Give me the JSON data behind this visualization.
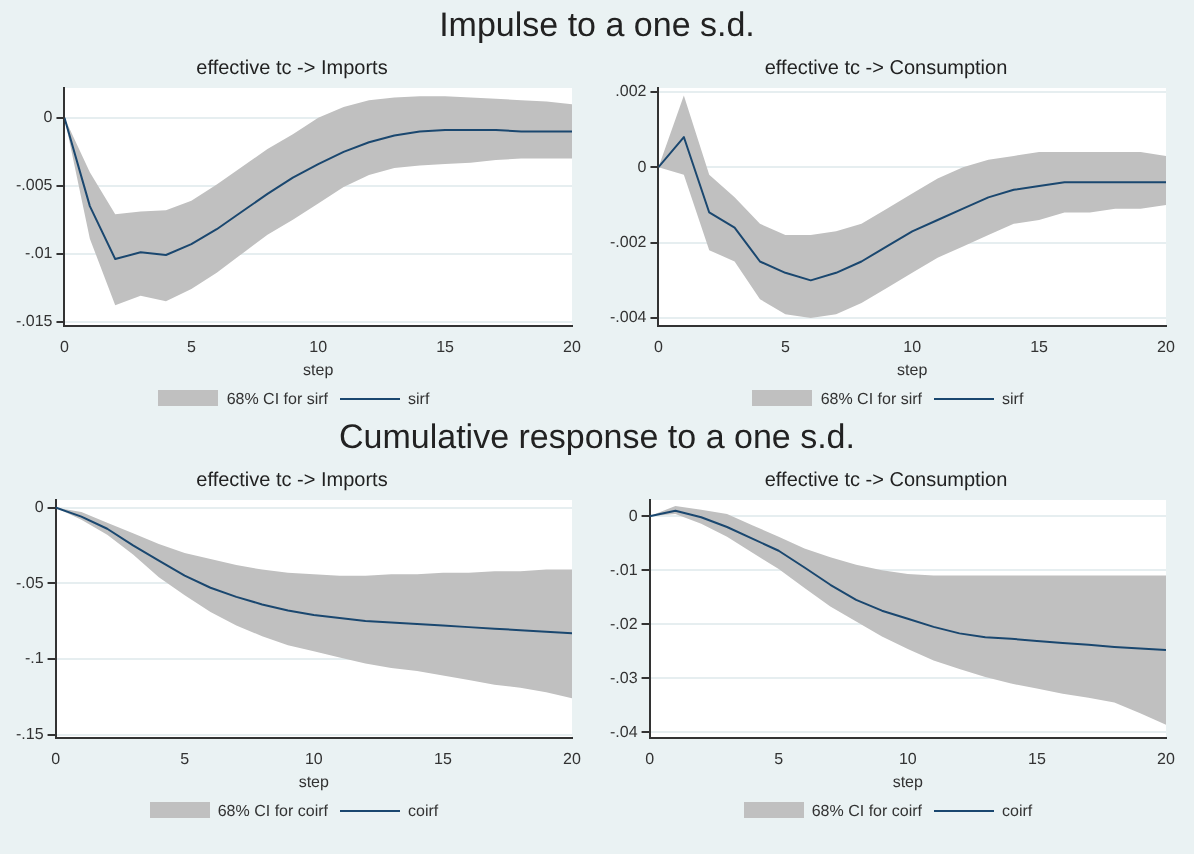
{
  "chart_data": [
    {
      "type": "line",
      "title": "effective tc -> Imports",
      "annotations": [
        "Impulse to a one s.d.",
        "68% CI for sirf"
      ],
      "xlabel": "step",
      "x": [
        0,
        1,
        2,
        3,
        4,
        5,
        6,
        7,
        8,
        9,
        10,
        11,
        12,
        13,
        14,
        15,
        16,
        17,
        18,
        19,
        20
      ],
      "xlim": [
        0,
        20
      ],
      "xticks": [
        0,
        5,
        10,
        15,
        20
      ],
      "ylim": [
        -0.0153,
        0.0022
      ],
      "yticks": [
        {
          "value": -0.015,
          "label": "-.015"
        },
        {
          "value": -0.01,
          "label": "-.01"
        },
        {
          "value": -0.005,
          "label": "-.005"
        },
        {
          "value": 0,
          "label": "0"
        }
      ],
      "grid": "y",
      "legend": "bottom",
      "marker": "none",
      "series": [
        {
          "name": "sirf",
          "color": "#1a476f",
          "values": [
            0,
            -0.0065,
            -0.0104,
            -0.0099,
            -0.0101,
            -0.0093,
            -0.0082,
            -0.0069,
            -0.0056,
            -0.0044,
            -0.0034,
            -0.0025,
            -0.0018,
            -0.0013,
            -0.001,
            -0.0009,
            -0.0009,
            -0.0009,
            -0.001,
            -0.001,
            -0.001
          ],
          "lower": [
            0,
            -0.0089,
            -0.0138,
            -0.0131,
            -0.0135,
            -0.0126,
            -0.0114,
            -0.01,
            -0.0086,
            -0.0075,
            -0.0063,
            -0.0051,
            -0.0042,
            -0.0037,
            -0.0035,
            -0.0034,
            -0.0033,
            -0.0031,
            -0.003,
            -0.003,
            -0.003
          ],
          "upper": [
            0,
            -0.004,
            -0.0071,
            -0.0069,
            -0.0068,
            -0.0061,
            -0.0049,
            -0.0036,
            -0.0023,
            -0.0012,
            0,
            0.0008,
            0.0013,
            0.0015,
            0.0016,
            0.0016,
            0.0015,
            0.0014,
            0.0013,
            0.0012,
            0.001
          ]
        }
      ]
    },
    {
      "type": "line",
      "title": "effective tc -> Consumption",
      "annotations": [
        "68% CI for sirf"
      ],
      "xlabel": "step",
      "x": [
        0,
        1,
        2,
        3,
        4,
        5,
        6,
        7,
        8,
        9,
        10,
        11,
        12,
        13,
        14,
        15,
        16,
        17,
        18,
        19,
        20
      ],
      "xlim": [
        0,
        20
      ],
      "xticks": [
        0,
        5,
        10,
        15,
        20
      ],
      "ylim": [
        -0.0042,
        0.0021
      ],
      "yticks": [
        {
          "value": -0.004,
          "label": "-.004"
        },
        {
          "value": -0.002,
          "label": "-.002"
        },
        {
          "value": 0,
          "label": "0"
        },
        {
          "value": 0.002,
          "label": ".002"
        }
      ],
      "grid": "y",
      "legend": "bottom",
      "marker": "none",
      "series": [
        {
          "name": "sirf",
          "color": "#1a476f",
          "values": [
            0,
            0.0008,
            -0.0012,
            -0.0016,
            -0.0025,
            -0.0028,
            -0.003,
            -0.0028,
            -0.0025,
            -0.0021,
            -0.0017,
            -0.0014,
            -0.0011,
            -0.0008,
            -0.0006,
            -0.0005,
            -0.0004,
            -0.0004,
            -0.0004,
            -0.0004,
            -0.0004
          ],
          "lower": [
            0,
            -0.0002,
            -0.0022,
            -0.0025,
            -0.0035,
            -0.0039,
            -0.004,
            -0.0039,
            -0.0036,
            -0.0032,
            -0.0028,
            -0.0024,
            -0.0021,
            -0.0018,
            -0.0015,
            -0.0014,
            -0.0012,
            -0.0012,
            -0.0011,
            -0.0011,
            -0.001
          ],
          "upper": [
            0,
            0.0019,
            -0.0002,
            -0.0008,
            -0.0015,
            -0.0018,
            -0.0018,
            -0.0017,
            -0.0015,
            -0.0011,
            -0.0007,
            -0.0003,
            0,
            0.0002,
            0.0003,
            0.0004,
            0.0004,
            0.0004,
            0.0004,
            0.0004,
            0.0003
          ]
        }
      ]
    },
    {
      "type": "line",
      "title": "effective tc -> Imports",
      "annotations": [
        "Cumulative response to a one s.d.",
        "68% CI for coirf"
      ],
      "xlabel": "step",
      "x": [
        0,
        1,
        2,
        3,
        4,
        5,
        6,
        7,
        8,
        9,
        10,
        11,
        12,
        13,
        14,
        15,
        16,
        17,
        18,
        19,
        20
      ],
      "xlim": [
        0,
        20
      ],
      "xticks": [
        0,
        5,
        10,
        15,
        20
      ],
      "ylim": [
        -0.152,
        0.005
      ],
      "yticks": [
        {
          "value": -0.15,
          "label": "-.15"
        },
        {
          "value": -0.1,
          "label": "-.1"
        },
        {
          "value": -0.05,
          "label": "-.05"
        },
        {
          "value": 0,
          "label": "0"
        }
      ],
      "grid": "y",
      "legend": "bottom",
      "marker": "none",
      "series": [
        {
          "name": "coirf",
          "color": "#1a476f",
          "values": [
            0,
            -0.006,
            -0.014,
            -0.025,
            -0.035,
            -0.045,
            -0.053,
            -0.059,
            -0.064,
            -0.068,
            -0.071,
            -0.073,
            -0.075,
            -0.076,
            -0.077,
            -0.078,
            -0.079,
            -0.08,
            -0.081,
            -0.082,
            -0.083
          ],
          "lower": [
            0,
            -0.008,
            -0.018,
            -0.031,
            -0.046,
            -0.058,
            -0.069,
            -0.078,
            -0.085,
            -0.091,
            -0.095,
            -0.099,
            -0.103,
            -0.106,
            -0.108,
            -0.111,
            -0.114,
            -0.117,
            -0.119,
            -0.122,
            -0.126
          ],
          "upper": [
            0,
            -0.003,
            -0.01,
            -0.017,
            -0.024,
            -0.03,
            -0.034,
            -0.038,
            -0.041,
            -0.043,
            -0.044,
            -0.045,
            -0.045,
            -0.044,
            -0.044,
            -0.043,
            -0.043,
            -0.042,
            -0.042,
            -0.041,
            -0.041
          ]
        }
      ]
    },
    {
      "type": "line",
      "title": "effective tc -> Consumption",
      "annotations": [
        "68% CI for coirf"
      ],
      "xlabel": "step",
      "x": [
        0,
        1,
        2,
        3,
        4,
        5,
        6,
        7,
        8,
        9,
        10,
        11,
        12,
        13,
        14,
        15,
        16,
        17,
        18,
        19,
        20
      ],
      "xlim": [
        0,
        20
      ],
      "xticks": [
        0,
        5,
        10,
        15,
        20
      ],
      "ylim": [
        -0.041,
        0.003
      ],
      "yticks": [
        {
          "value": -0.04,
          "label": "-.04"
        },
        {
          "value": -0.03,
          "label": "-.03"
        },
        {
          "value": -0.02,
          "label": "-.02"
        },
        {
          "value": -0.01,
          "label": "-.01"
        },
        {
          "value": 0,
          "label": "0"
        }
      ],
      "grid": "y",
      "legend": "bottom",
      "marker": "none",
      "series": [
        {
          "name": "coirf",
          "color": "#1a476f",
          "values": [
            0,
            0.001,
            -0.0002,
            -0.002,
            -0.0042,
            -0.0064,
            -0.0095,
            -0.0127,
            -0.0155,
            -0.0175,
            -0.019,
            -0.0205,
            -0.0217,
            -0.0224,
            -0.0227,
            -0.0231,
            -0.0235,
            -0.0238,
            -0.0242,
            -0.0245,
            -0.0248
          ],
          "lower": [
            0,
            0.0004,
            -0.0014,
            -0.0038,
            -0.0068,
            -0.0098,
            -0.0133,
            -0.0167,
            -0.0195,
            -0.0223,
            -0.0246,
            -0.0267,
            -0.0283,
            -0.0298,
            -0.031,
            -0.0319,
            -0.0329,
            -0.0336,
            -0.0345,
            -0.0365,
            -0.0386
          ],
          "upper": [
            0,
            0.0019,
            0.0012,
            0.0004,
            -0.0017,
            -0.0038,
            -0.006,
            -0.0076,
            -0.009,
            -0.01,
            -0.0107,
            -0.011,
            -0.011,
            -0.011,
            -0.011,
            -0.011,
            -0.011,
            -0.011,
            -0.011,
            -0.011,
            -0.011
          ]
        }
      ]
    }
  ]
}
